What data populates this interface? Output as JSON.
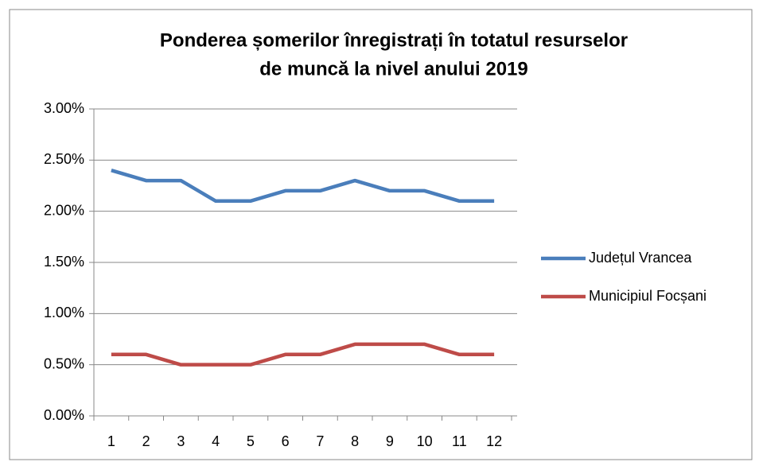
{
  "chart_data": {
    "type": "line",
    "title": [
      "Ponderea șomerilor înregistrați în totatul resurselor",
      "de muncă la nivel anului 2019"
    ],
    "categories": [
      "1",
      "2",
      "3",
      "4",
      "5",
      "6",
      "7",
      "8",
      "9",
      "10",
      "11",
      "12"
    ],
    "series": [
      {
        "name": "Județul Vrancea",
        "color": "#4a7ebb",
        "values": [
          2.4,
          2.3,
          2.3,
          2.1,
          2.1,
          2.2,
          2.2,
          2.3,
          2.2,
          2.2,
          2.1,
          2.1
        ]
      },
      {
        "name": "Municipiul Focșani",
        "color": "#be4b48",
        "values": [
          0.6,
          0.6,
          0.5,
          0.5,
          0.5,
          0.6,
          0.6,
          0.7,
          0.7,
          0.7,
          0.6,
          0.6
        ]
      }
    ],
    "ylim": [
      0,
      3
    ],
    "yticks": [
      {
        "value": 0,
        "label": "0.00%"
      },
      {
        "value": 0.5,
        "label": "0.50%"
      },
      {
        "value": 1,
        "label": "1.00%"
      },
      {
        "value": 1.5,
        "label": "1.50%"
      },
      {
        "value": 2,
        "label": "2.00%"
      },
      {
        "value": 2.5,
        "label": "2.50%"
      },
      {
        "value": 3,
        "label": "3.00%"
      }
    ],
    "grid": true,
    "legend": "right"
  }
}
